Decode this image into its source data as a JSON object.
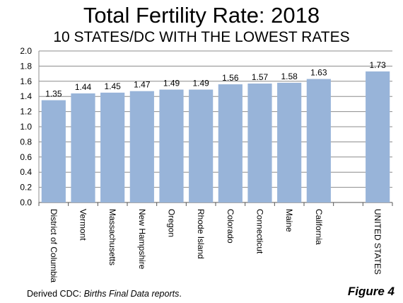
{
  "chart_data": {
    "type": "bar",
    "title": "Total Fertility Rate: 2018",
    "subtitle": "10 STATES/DC WITH THE LOWEST RATES",
    "categories": [
      "District of Columbia",
      "Vermont",
      "Massachusetts",
      "New Hampshire",
      "Oregon",
      "Rhode Island",
      "Colorado",
      "Connecticut",
      "Maine",
      "California",
      "",
      "UNITED STATES"
    ],
    "values": [
      1.35,
      1.44,
      1.45,
      1.47,
      1.49,
      1.49,
      1.56,
      1.57,
      1.58,
      1.63,
      null,
      1.73
    ],
    "data_labels": [
      "1.35",
      "1.44",
      "1.45",
      "1.47",
      "1.49",
      "1.49",
      "1.56",
      "1.57",
      "1.58",
      "1.63",
      "",
      "1.73"
    ],
    "ylim": [
      0,
      2.0
    ],
    "yticks": [
      "0.0",
      "0.2",
      "0.4",
      "0.6",
      "0.8",
      "1.0",
      "1.2",
      "1.4",
      "1.6",
      "1.8",
      "2.0"
    ],
    "grid": true,
    "bar_color": "#98b4d9",
    "grid_color": "#8c8c8c",
    "xlabel": "",
    "ylabel": ""
  },
  "footer": {
    "source_prefix": "Derived  CDC: ",
    "source_italic": "Births Final Data reports",
    "source_suffix": ".",
    "figure_label": "Figure 4"
  }
}
